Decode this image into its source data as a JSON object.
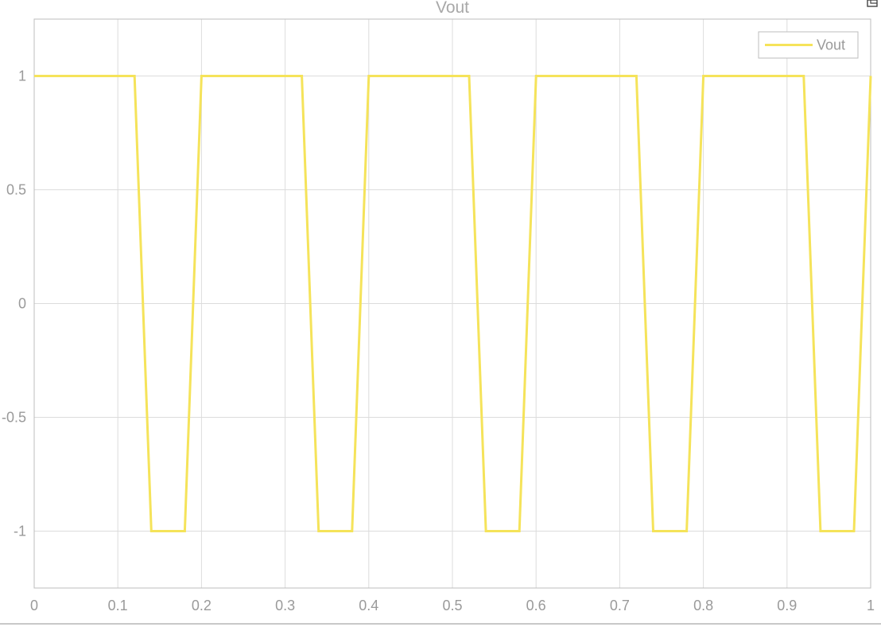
{
  "chart_data": {
    "type": "line",
    "title": "Vout",
    "xlabel": "",
    "ylabel": "",
    "xlim": [
      0,
      1
    ],
    "ylim": [
      -1.25,
      1.25
    ],
    "xticks": [
      0,
      0.1,
      0.2,
      0.3,
      0.4,
      0.5,
      0.6,
      0.7,
      0.8,
      0.9,
      1
    ],
    "xtick_labels": [
      "0",
      "0.1",
      "0.2",
      "0.3",
      "0.4",
      "0.5",
      "0.6",
      "0.7",
      "0.8",
      "0.9",
      "1"
    ],
    "yticks": [
      1,
      0.5,
      0,
      -0.5,
      -1
    ],
    "ytick_labels": [
      "1",
      "0.5",
      "0",
      "-0.5",
      "-1"
    ],
    "grid": true,
    "legend_position": "top-right",
    "series": [
      {
        "name": "Vout",
        "color": "#f5e35a",
        "x": [
          0,
          0.12,
          0.14,
          0.18,
          0.2,
          0.32,
          0.34,
          0.38,
          0.4,
          0.52,
          0.54,
          0.58,
          0.6,
          0.72,
          0.74,
          0.78,
          0.8,
          0.92,
          0.94,
          0.98,
          1.0
        ],
        "y": [
          1,
          1,
          -1,
          -1,
          1,
          1,
          -1,
          -1,
          1,
          1,
          -1,
          -1,
          1,
          1,
          -1,
          -1,
          1,
          1,
          -1,
          -1,
          1
        ]
      }
    ]
  },
  "ui": {
    "corner_icon": "expand-icon"
  }
}
